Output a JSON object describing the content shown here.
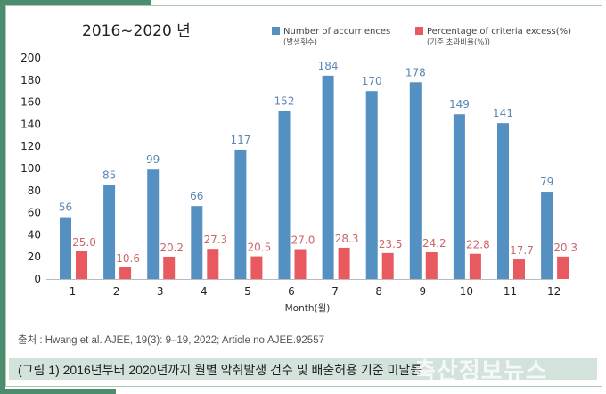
{
  "chart_data": {
    "type": "bar",
    "title": "2016~2020 년",
    "xlabel": "Month(월)",
    "ylabel": "",
    "ylim": [
      0,
      200
    ],
    "yticks": [
      0,
      20,
      40,
      60,
      80,
      100,
      120,
      140,
      160,
      180,
      200
    ],
    "categories": [
      "1",
      "2",
      "3",
      "4",
      "5",
      "6",
      "7",
      "8",
      "9",
      "10",
      "11",
      "12"
    ],
    "series": [
      {
        "name": "Number of accurr ences",
        "name_sub": "(발생횟수)",
        "color": "#5590c3",
        "label_color": "#5a87b3",
        "values": [
          56,
          85,
          99,
          66,
          117,
          152,
          184,
          170,
          178,
          149,
          141,
          79
        ],
        "labels": [
          "56",
          "85",
          "99",
          "66",
          "117",
          "152",
          "184",
          "170",
          "178",
          "149",
          "141",
          "79"
        ]
      },
      {
        "name": "Percentage of criteria excess(%)",
        "name_sub": "(기준 초과비율(%))",
        "color": "#e85a5f",
        "label_color": "#c9686a",
        "values": [
          25.0,
          10.6,
          20.2,
          27.3,
          20.5,
          27.0,
          28.3,
          23.5,
          24.2,
          22.8,
          17.7,
          20.3
        ],
        "labels": [
          "25.0",
          "10.6",
          "20.2",
          "27.3",
          "20.5",
          "27.0",
          "28.3",
          "23.5",
          "24.2",
          "22.8",
          "17.7",
          "20.3"
        ]
      }
    ],
    "grid": false,
    "legend_position": "top-right"
  },
  "source": "출처 : Hwang et al. AJEE, 19(3): 9–19, 2022; Article no.AJEE.92557",
  "caption": "(그림 1) 2016년부터 2020년까지 월별 악취발생 건수 및 배출허용 기준 미달률",
  "watermark": "축산정보뉴스"
}
